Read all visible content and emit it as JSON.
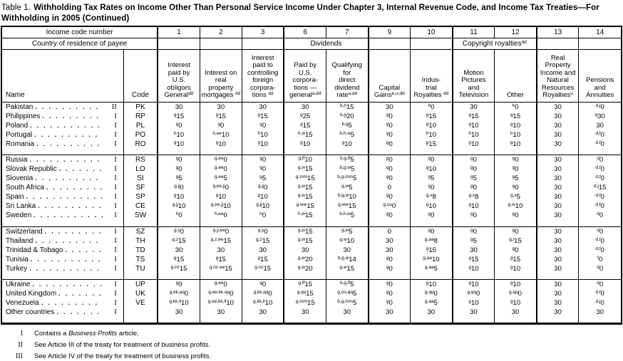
{
  "title": {
    "prefix": "Table 1.",
    "main": "Withholding Tax Rates on Income Other Than Personal Service Income Under Chapter 3, Internal Revenue Code, and Income Tax Treaties—For Withholding in 2005 (Continued)"
  },
  "table": {
    "top_header": {
      "income_code_label": "Income code number",
      "column_numbers": [
        "1",
        "2",
        "3",
        "6",
        "7",
        "9",
        "10",
        "11",
        "12",
        "13",
        "14"
      ]
    },
    "group_header": {
      "country_label": "Country of residence of payee",
      "dividends_label": "Dividends",
      "copyright_label": "Copyright royalties^dd"
    },
    "column_headers": {
      "name": "Name",
      "code": "Code",
      "columns": [
        [
          "Interest",
          "paid by",
          "U.S.",
          "obligors",
          "General^dd"
        ],
        [
          "Interest on",
          "real",
          "property",
          "mortgages ^dd"
        ],
        [
          "Interest",
          "paid to",
          "controlling",
          "foreign",
          "corpora-",
          "tions ^dd"
        ],
        [
          "Paid by",
          "U.S.",
          "corpora-",
          "tions —",
          "general^a,dd"
        ],
        [
          "Qualifying",
          "for",
          "direct",
          "dividend",
          "rate^a,dd"
        ],
        [
          "Capital",
          "Gains^e,u,dd"
        ],
        [
          "Indus-",
          "trial",
          "Royalties ^dd"
        ],
        [
          "Motion",
          "Pictures",
          "and",
          "Television"
        ],
        [
          "Other"
        ],
        [
          "Real",
          "Property",
          "Income and",
          "Natural",
          "Resources",
          "Royalties^u"
        ],
        [
          "Pensions",
          "and",
          "Annuities"
        ]
      ]
    },
    "blocks": [
      {
        "rows": [
          {
            "name": "Pakistan",
            "treaty": "II",
            "code": "PK",
            "rates": [
              "30",
              "30",
              "30",
              "30",
              "b,h|15",
              "30",
              "h|0",
              "30",
              "h|0",
              "30",
              "d,j|0"
            ]
          },
          {
            "name": "Philippines",
            "treaty": "I",
            "code": "RP",
            "rates": [
              "g|15",
              "g|15",
              "g|15",
              "g|25",
              "b,g|20",
              "g|0",
              "g|15",
              "g|15",
              "g|15",
              "30",
              "q|30"
            ]
          },
          {
            "name": "Poland",
            "treaty": "I",
            "code": "PL",
            "rates": [
              "g|0",
              "g|0",
              "g|0",
              "g|15",
              "b,g|5",
              "g|0",
              "g|10",
              "g|10",
              "g|10",
              "30",
              "30"
            ]
          },
          {
            "name": "Portugal",
            "treaty": "I",
            "code": "PO",
            "rates": [
              "h|10",
              "h,ee|10",
              "h|10",
              "h,w|15",
              "b,h,w|5",
              "g|0",
              "h|10",
              "h|10",
              "h|10",
              "30",
              "d,f|0"
            ]
          },
          {
            "name": "Romania",
            "treaty": "I",
            "code": "RO",
            "rates": [
              "g|10",
              "g|10",
              "g|10",
              "g|10",
              "g|10",
              "g|0",
              "g|15",
              "g|10",
              "g|10",
              "30",
              "d,f|0"
            ]
          }
        ]
      },
      {
        "rows": [
          {
            "name": "Russia",
            "treaty": "I",
            "code": "RS",
            "rates": [
              "g|0",
              "g,ee|0",
              "g|0",
              "g,ff|10",
              "b,g,ff|5",
              "g|0",
              "g|0",
              "g|0",
              "g|0",
              "30",
              "d|0"
            ]
          },
          {
            "name": "Slovak Republic",
            "treaty": "I",
            "code": "LO",
            "rates": [
              "g|0",
              "g,ee|0",
              "g|0",
              "g,w|15",
              "b,g,w|5",
              "g|0",
              "g|10",
              "g|0",
              "g|0",
              "30",
              "d,f|0"
            ]
          },
          {
            "name": "Slovenia",
            "treaty": "I",
            "code": "SI",
            "rates": [
              "g|5",
              "g,ee|5",
              "g|5",
              "g,mm|15",
              "b,g,mm|5",
              "g|0",
              "g|5",
              "g|5",
              "g|5",
              "30",
              "d,f|0"
            ]
          },
          {
            "name": "South Africa",
            "treaty": "I",
            "code": "SF",
            "rates": [
              "g,jj|0",
              "g,ee,jj|0",
              "g,jj|0",
              "g,w|15",
              "g,w|5",
              "0",
              "g|0",
              "g|0",
              "g|0",
              "30",
              "d,j|15"
            ]
          },
          {
            "name": "Spain",
            "treaty": "I",
            "code": "SP",
            "rates": [
              "g|10",
              "g|10",
              "g|10",
              "g,w|15",
              "b,g,w|10",
              "g|0",
              "g,x|8",
              "g,x|8",
              "g,x|5",
              "30",
              "d,f|0"
            ]
          },
          {
            "name": "Sri Lanka",
            "treaty": "I",
            "code": "CE",
            "rates": [
              "g,jj|10",
              "g,ee,jj|10",
              "g,jj|10",
              "g,ww|15",
              "g,ww|15",
              "g,uu|0",
              "g|10",
              "g|10",
              "g,w|10",
              "30",
              "d,f|0"
            ]
          },
          {
            "name": "Sweden",
            "treaty": "I",
            "code": "SW",
            "rates": [
              "h|0",
              "h,ee|0",
              "h|0",
              "h,w|15",
              "b,h,w|5",
              "g|0",
              "g|0",
              "g|0",
              "g|0",
              "30",
              "d|0"
            ]
          }
        ]
      },
      {
        "rows": [
          {
            "name": "Switzerland",
            "treaty": "I",
            "code": "SZ",
            "rates": [
              "g,y|0",
              "g,y,ee|0",
              "g,y|0",
              "g,w|15",
              "g,w|5",
              "0",
              "g|0",
              "g|0",
              "g|0",
              "30",
              "d|0"
            ]
          },
          {
            "name": "Thailand",
            "treaty": "I",
            "code": "TH",
            "rates": [
              "g,z|15",
              "g,z,ee|15",
              "g,z|15",
              "g,w|15",
              "g,w|10",
              "30",
              "g,aa|8",
              "g|5",
              "g,i|15",
              "30",
              "d,f|0"
            ]
          },
          {
            "name": "Trinidad & Tobago",
            "treaty": "I",
            "code": "TD",
            "rates": [
              "30",
              "30",
              "30",
              "30",
              "30",
              "30",
              "g|15",
              "30",
              "g|0",
              "30",
              "d,f|0"
            ]
          },
          {
            "name": "Tunisia",
            "treaty": "I",
            "code": "TS",
            "rates": [
              "g|15",
              "g|15",
              "g|15",
              "g,w|20",
              "b,g,w|14",
              "g|0",
              "g,aa|10",
              "g|15",
              "g|15",
              "30",
              "f|0"
            ]
          },
          {
            "name": "Turkey",
            "treaty": "I",
            "code": "TU",
            "rates": [
              "g,nz|15",
              "g,nz,ee|15",
              "g,nz|15",
              "g,w|20",
              "g,w|15",
              "g|0",
              "g,aa|5",
              "g|10",
              "g|10",
              "30",
              "d|0"
            ]
          }
        ]
      },
      {
        "rows": [
          {
            "name": "Ukraine",
            "treaty": "I",
            "code": "UP",
            "rates": [
              "g|0",
              "g,ee|0",
              "g|0",
              "g,ff|15",
              "b,g,ff|5",
              "g|0",
              "g|10",
              "g|10",
              "g|10",
              "30",
              "d|0"
            ]
          },
          {
            "name": "United Kingdom",
            "treaty": "I",
            "code": "UK",
            "rates": [
              "g,kk,qq|0",
              "g,ee,kk,qq|0",
              "g,kk,qq|0",
              "g,qq|15",
              "g,oo,qq|5",
              "g|0",
              "g,qq|0",
              "g,qq|0",
              "g,qq|0",
              "30",
              "d,f|0"
            ]
          },
          {
            "name": "Venezuela",
            "treaty": "I",
            "code": "VE",
            "rates": [
              "g,kk,ll|10",
              "g,ee,kk,ll|10",
              "g,kk,ll|10",
              "g,mm|15",
              "b,g,mm|5",
              "g|0",
              "g,aa|5",
              "g|10",
              "g|10",
              "30",
              "d,j|0"
            ]
          },
          {
            "name": "Other countries",
            "treaty": "I",
            "code": "",
            "rates": [
              "30",
              "30",
              "30",
              "30",
              "30",
              "30",
              "30",
              "30",
              "30",
              "30",
              "30"
            ]
          }
        ]
      }
    ]
  },
  "footnotes": [
    {
      "marker": "I",
      "pre": "Contains a ",
      "italic": "Business Profits",
      "post": " article."
    },
    {
      "marker": "II",
      "text": "See Article III of the treaty for treatment of business profits."
    },
    {
      "marker": "III",
      "text": "See Article IV of the treaty for treatment of business profits."
    }
  ]
}
